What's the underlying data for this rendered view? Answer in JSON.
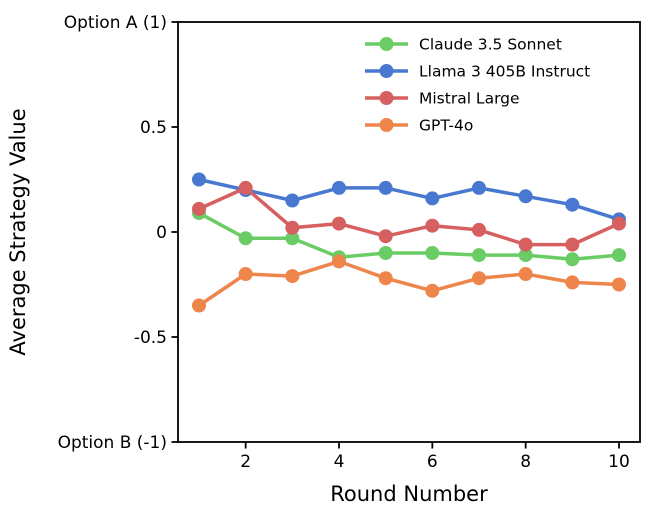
{
  "chart_data": {
    "type": "line",
    "title": "",
    "xlabel": "Round Number",
    "ylabel": "Average Strategy Value",
    "x": [
      1,
      2,
      3,
      4,
      5,
      6,
      7,
      8,
      9,
      10
    ],
    "xlim": [
      0.55,
      10.45
    ],
    "ylim": [
      -1,
      1
    ],
    "x_ticks": [
      2,
      4,
      6,
      8,
      10
    ],
    "y_ticks": [
      {
        "value": 1,
        "label": "Option A (1)"
      },
      {
        "value": 0.5,
        "label": "0.5"
      },
      {
        "value": 0,
        "label": "0"
      },
      {
        "value": -0.5,
        "label": "-0.5"
      },
      {
        "value": -1,
        "label": "Option B (-1)"
      }
    ],
    "grid": false,
    "legend_position": "upper right",
    "background_color": "#ffffff",
    "axis_color": "#000000",
    "series": [
      {
        "name": "Claude 3.5 Sonnet",
        "color": "#6acc64",
        "values": [
          0.09,
          -0.03,
          -0.03,
          -0.12,
          -0.1,
          -0.1,
          -0.11,
          -0.11,
          -0.13,
          -0.11
        ]
      },
      {
        "name": "Llama 3 405B Instruct",
        "color": "#4878d0",
        "values": [
          0.25,
          0.2,
          0.15,
          0.21,
          0.21,
          0.16,
          0.21,
          0.17,
          0.13,
          0.06
        ]
      },
      {
        "name": "Mistral Large",
        "color": "#d65f5f",
        "values": [
          0.11,
          0.21,
          0.02,
          0.04,
          -0.02,
          0.03,
          0.01,
          -0.06,
          -0.06,
          0.04
        ]
      },
      {
        "name": "GPT-4o",
        "color": "#ee854a",
        "values": [
          -0.35,
          -0.2,
          -0.21,
          -0.14,
          -0.22,
          -0.28,
          -0.22,
          -0.2,
          -0.24,
          -0.25
        ]
      }
    ]
  }
}
